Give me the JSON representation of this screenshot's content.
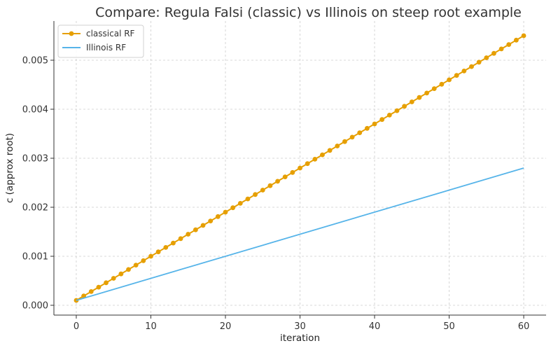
{
  "chart_data": {
    "type": "line",
    "title": "Compare: Regula Falsi (classic) vs Illinois on steep root example",
    "xlabel": "iteration",
    "ylabel": "c (approx root)",
    "xlim": [
      -3,
      63
    ],
    "ylim": [
      -0.0002,
      0.0058
    ],
    "xticks": [
      0,
      10,
      20,
      30,
      40,
      50,
      60
    ],
    "xtick_labels": [
      "0",
      "10",
      "20",
      "30",
      "40",
      "50",
      "60"
    ],
    "yticks": [
      0.0,
      0.001,
      0.002,
      0.003,
      0.004,
      0.005
    ],
    "ytick_labels": [
      "0.000",
      "0.001",
      "0.002",
      "0.003",
      "0.004",
      "0.005"
    ],
    "grid": true,
    "legend_position": "top-left",
    "series": [
      {
        "name": "classical RF",
        "color": "#E69F00",
        "marker": "circle",
        "x": [
          0,
          1,
          2,
          3,
          4,
          5,
          6,
          7,
          8,
          9,
          10,
          11,
          12,
          13,
          14,
          15,
          16,
          17,
          18,
          19,
          20,
          21,
          22,
          23,
          24,
          25,
          26,
          27,
          28,
          29,
          30,
          31,
          32,
          33,
          34,
          35,
          36,
          37,
          38,
          39,
          40,
          41,
          42,
          43,
          44,
          45,
          46,
          47,
          48,
          49,
          50,
          51,
          52,
          53,
          54,
          55,
          56,
          57,
          58,
          59,
          60
        ],
        "y": [
          0.0001,
          0.00019,
          0.00028,
          0.00037,
          0.00046,
          0.00055,
          0.00064,
          0.00073,
          0.00082,
          0.00091,
          0.001,
          0.00109,
          0.00118,
          0.00127,
          0.00136,
          0.00145,
          0.00154,
          0.00163,
          0.00172,
          0.00181,
          0.0019,
          0.00199,
          0.00208,
          0.00217,
          0.00226,
          0.00235,
          0.00244,
          0.00253,
          0.00262,
          0.00271,
          0.0028,
          0.00289,
          0.00298,
          0.00307,
          0.00316,
          0.00325,
          0.00334,
          0.00343,
          0.00352,
          0.00361,
          0.0037,
          0.00379,
          0.00388,
          0.00397,
          0.00406,
          0.00415,
          0.00424,
          0.00433,
          0.00442,
          0.00451,
          0.0046,
          0.00469,
          0.00478,
          0.00487,
          0.00496,
          0.00505,
          0.00514,
          0.00523,
          0.00532,
          0.00541,
          0.0055
        ]
      },
      {
        "name": "Illinois RF",
        "color": "#56B4E9",
        "marker": "none",
        "x": [
          0,
          60
        ],
        "y": [
          0.0001,
          0.0028
        ]
      }
    ]
  }
}
